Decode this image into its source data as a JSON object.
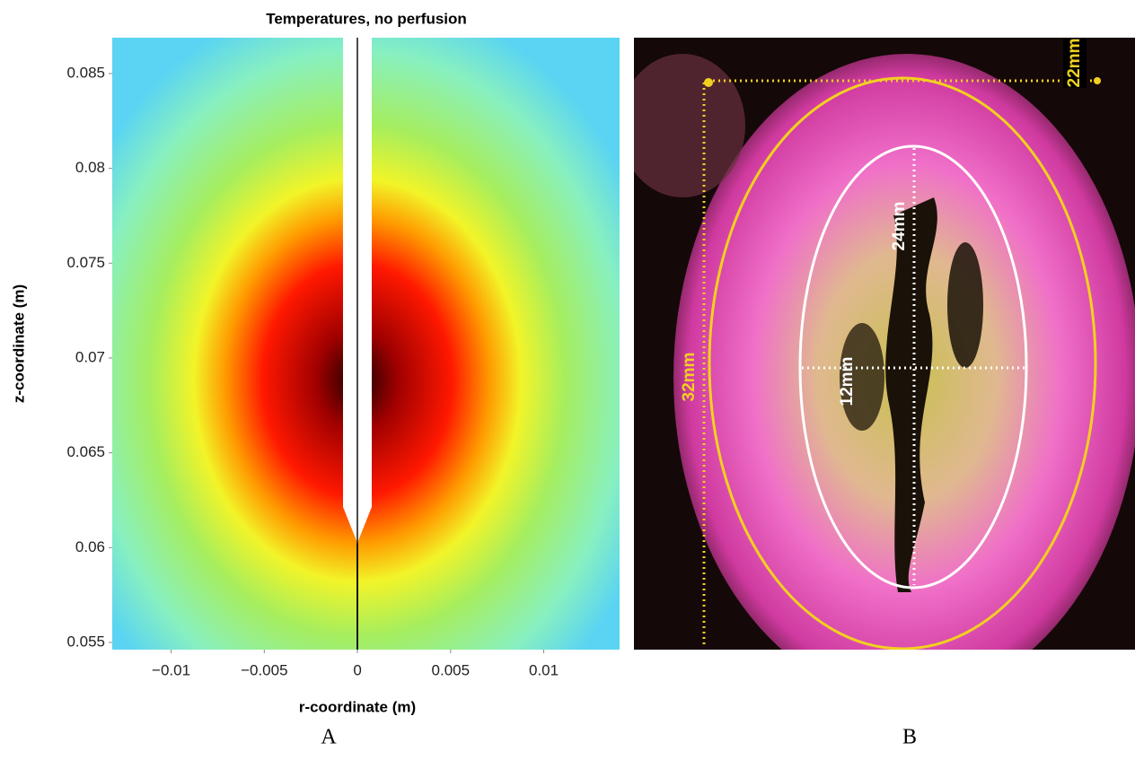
{
  "chart_data": {
    "type": "heatmap",
    "title": "Temperatures, no perfusion",
    "xlabel": "r-coordinate (m)",
    "ylabel": "z-coordinate (m)",
    "xlim": [
      -0.01316,
      0.01407
    ],
    "ylim": [
      0.05462,
      0.08689
    ],
    "xticks": [
      {
        "value": -0.01,
        "label": "−0.01"
      },
      {
        "value": -0.005,
        "label": "−0.005"
      },
      0,
      0.005,
      0.01
    ],
    "yticks": [
      0.055,
      0.06,
      0.065,
      0.07,
      0.075,
      0.08,
      0.085
    ]
  },
  "panel_labels": [
    "A",
    "B"
  ],
  "photo_annotations": [
    "22mm",
    "24mm",
    "12mm",
    "32mm"
  ]
}
